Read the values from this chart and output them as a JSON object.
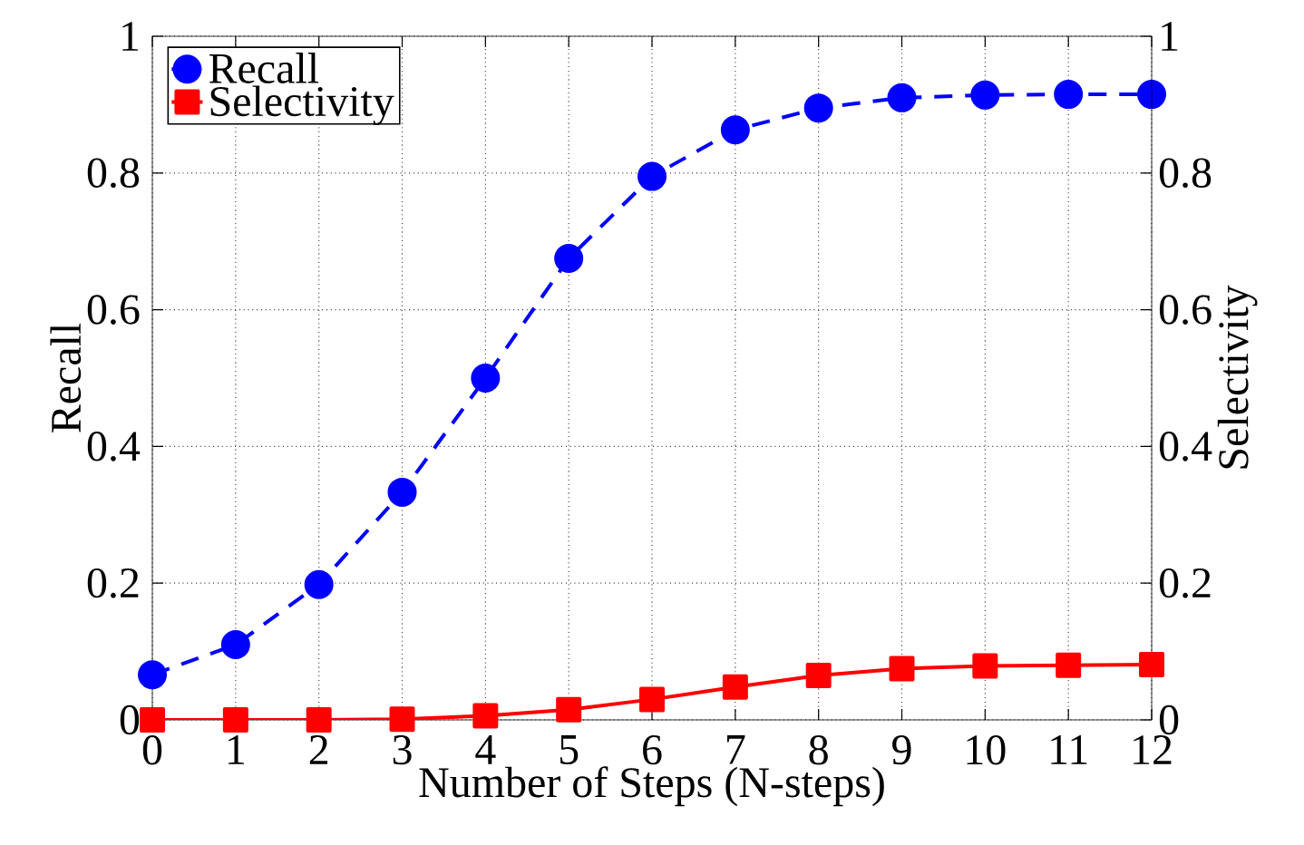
{
  "chart_data": {
    "type": "line",
    "xlabel": "Number of Steps (N-steps)",
    "ylabel": "Recall",
    "y2label": "Selectivity",
    "x": [
      0,
      1,
      2,
      3,
      4,
      5,
      6,
      7,
      8,
      9,
      10,
      11,
      12
    ],
    "series": [
      {
        "name": "Recall",
        "color": "#0000ff",
        "marker": "circle",
        "line_style": "dashed",
        "values": [
          0.066,
          0.11,
          0.198,
          0.333,
          0.5,
          0.675,
          0.795,
          0.863,
          0.895,
          0.91,
          0.914,
          0.915,
          0.915
        ]
      },
      {
        "name": "Selectivity",
        "color": "#ff0000",
        "marker": "square",
        "line_style": "solid",
        "axis": "y2",
        "values": [
          0,
          0,
          0,
          0.001,
          0.006,
          0.015,
          0.03,
          0.048,
          0.065,
          0.075,
          0.079,
          0.08,
          0.081
        ]
      }
    ],
    "xlim": [
      0,
      12
    ],
    "xticks": [
      0,
      1,
      2,
      3,
      4,
      5,
      6,
      7,
      8,
      9,
      10,
      11,
      12
    ],
    "ylim": [
      0,
      1
    ],
    "yticks": [
      0,
      0.2,
      0.4,
      0.6,
      0.8,
      1
    ],
    "y2lim": [
      0,
      1
    ],
    "y2ticks": [
      0,
      0.2,
      0.4,
      0.6,
      0.8,
      1
    ],
    "grid": true,
    "legend": "top left"
  }
}
